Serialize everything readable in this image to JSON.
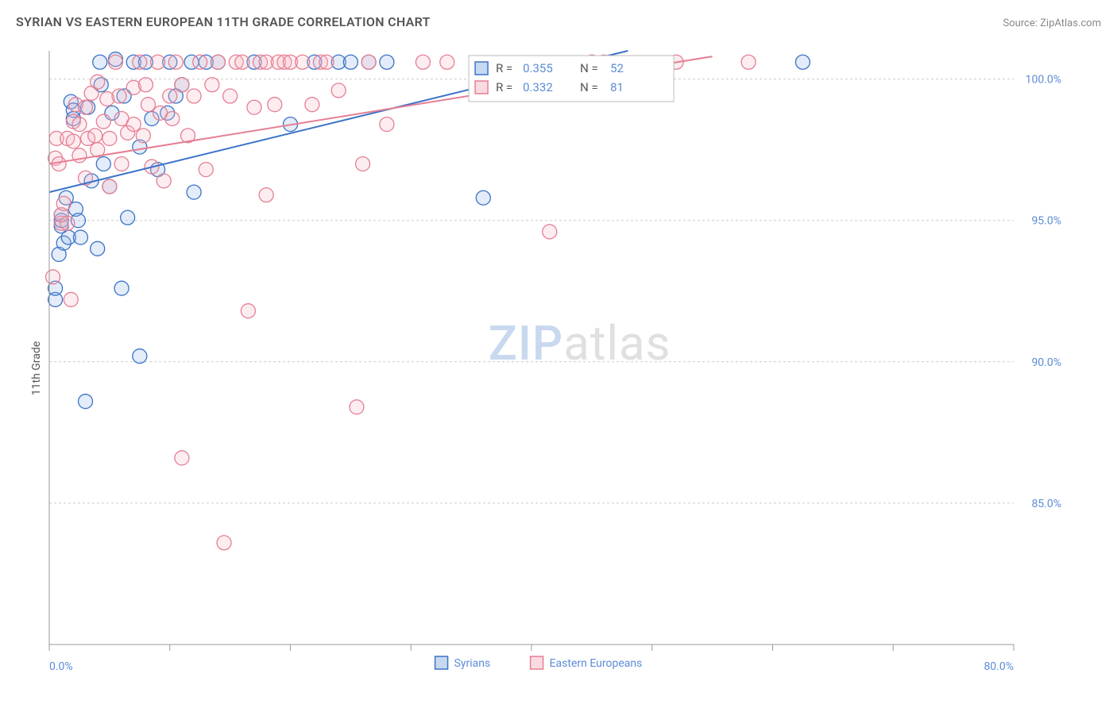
{
  "header": {
    "title": "SYRIAN VS EASTERN EUROPEAN 11TH GRADE CORRELATION CHART",
    "source": "Source: ZipAtlas.com"
  },
  "ylabel": "11th Grade",
  "watermark": {
    "part1": "ZIP",
    "part2": "atlas"
  },
  "chart": {
    "type": "scatter",
    "plot_bg": "#ffffff",
    "grid_color": "#cccccc",
    "axis_color": "#999999",
    "xlim": [
      0,
      80
    ],
    "ylim": [
      80,
      101
    ],
    "xticks": [
      0,
      10,
      20,
      30,
      40,
      50,
      60,
      70,
      80
    ],
    "xtick_labels": {
      "0": "0.0%",
      "80": "80.0%"
    },
    "yticks": [
      85,
      90,
      95,
      100
    ],
    "ytick_labels": {
      "85": "85.0%",
      "90": "90.0%",
      "95": "95.0%",
      "100": "100.0%"
    },
    "marker_radius": 9,
    "marker_stroke_width": 1.3,
    "marker_fill_opacity": 0.25,
    "series": [
      {
        "name": "Syrians",
        "stroke": "#3b73c8",
        "fill": "#8fb3e2",
        "trend": {
          "x1": 0,
          "y1": 96.0,
          "x2": 48,
          "y2": 101.0,
          "width": 2
        },
        "points": [
          [
            0.5,
            92.2
          ],
          [
            0.5,
            92.6
          ],
          [
            0.8,
            93.8
          ],
          [
            1.0,
            94.8
          ],
          [
            1.0,
            95.0
          ],
          [
            1.0,
            95.2
          ],
          [
            1.2,
            94.2
          ],
          [
            1.4,
            95.8
          ],
          [
            1.6,
            94.4
          ],
          [
            1.8,
            99.2
          ],
          [
            2.0,
            98.9
          ],
          [
            2.0,
            98.6
          ],
          [
            2.2,
            95.4
          ],
          [
            2.4,
            95.0
          ],
          [
            2.6,
            94.4
          ],
          [
            3.0,
            88.6
          ],
          [
            3.2,
            99.0
          ],
          [
            3.5,
            96.4
          ],
          [
            4.0,
            94.0
          ],
          [
            4.2,
            100.6
          ],
          [
            4.3,
            99.8
          ],
          [
            4.5,
            97.0
          ],
          [
            5.0,
            96.2
          ],
          [
            5.2,
            98.8
          ],
          [
            5.5,
            100.7
          ],
          [
            6.0,
            92.6
          ],
          [
            6.2,
            99.4
          ],
          [
            6.5,
            95.1
          ],
          [
            7.0,
            100.6
          ],
          [
            7.5,
            97.6
          ],
          [
            7.5,
            90.2
          ],
          [
            8.0,
            100.6
          ],
          [
            8.5,
            98.6
          ],
          [
            9.0,
            96.8
          ],
          [
            9.8,
            98.8
          ],
          [
            10.0,
            100.6
          ],
          [
            10.5,
            99.4
          ],
          [
            11.0,
            99.8
          ],
          [
            11.8,
            100.6
          ],
          [
            12.0,
            96.0
          ],
          [
            13.0,
            100.6
          ],
          [
            14.0,
            100.6
          ],
          [
            17.0,
            100.6
          ],
          [
            20.0,
            98.4
          ],
          [
            22.0,
            100.6
          ],
          [
            24.0,
            100.6
          ],
          [
            25.0,
            100.6
          ],
          [
            26.5,
            100.6
          ],
          [
            28.0,
            100.6
          ],
          [
            36.0,
            95.8
          ],
          [
            45.0,
            100.6
          ],
          [
            62.5,
            100.6
          ]
        ]
      },
      {
        "name": "Eastern Europeans",
        "stroke": "#e57f93",
        "fill": "#f6b8c3",
        "trend": {
          "x1": 0,
          "y1": 97.0,
          "x2": 55,
          "y2": 100.8,
          "width": 2
        },
        "points": [
          [
            0.3,
            93.0
          ],
          [
            0.5,
            97.2
          ],
          [
            0.6,
            97.9
          ],
          [
            0.8,
            97.0
          ],
          [
            1.0,
            94.9
          ],
          [
            1.0,
            95.2
          ],
          [
            1.2,
            95.6
          ],
          [
            1.5,
            97.9
          ],
          [
            1.5,
            94.9
          ],
          [
            1.8,
            92.2
          ],
          [
            2.0,
            98.5
          ],
          [
            2.0,
            97.8
          ],
          [
            2.2,
            99.1
          ],
          [
            2.5,
            97.3
          ],
          [
            2.5,
            98.4
          ],
          [
            3.0,
            96.5
          ],
          [
            3.0,
            99.0
          ],
          [
            3.2,
            97.9
          ],
          [
            3.5,
            99.5
          ],
          [
            3.8,
            98.0
          ],
          [
            4.0,
            97.5
          ],
          [
            4.0,
            99.9
          ],
          [
            4.5,
            98.5
          ],
          [
            4.8,
            99.3
          ],
          [
            5.0,
            97.9
          ],
          [
            5.0,
            96.2
          ],
          [
            5.5,
            100.6
          ],
          [
            5.8,
            99.4
          ],
          [
            6.0,
            98.6
          ],
          [
            6.0,
            97.0
          ],
          [
            6.5,
            98.1
          ],
          [
            7.0,
            99.7
          ],
          [
            7.0,
            98.4
          ],
          [
            7.5,
            100.6
          ],
          [
            7.8,
            98.0
          ],
          [
            8.0,
            99.8
          ],
          [
            8.2,
            99.1
          ],
          [
            8.5,
            96.9
          ],
          [
            9.0,
            100.6
          ],
          [
            9.2,
            98.8
          ],
          [
            9.5,
            96.4
          ],
          [
            10.0,
            99.4
          ],
          [
            10.2,
            98.6
          ],
          [
            10.5,
            100.6
          ],
          [
            11.0,
            99.8
          ],
          [
            11.0,
            86.6
          ],
          [
            11.5,
            98.0
          ],
          [
            12.0,
            99.4
          ],
          [
            12.5,
            100.6
          ],
          [
            13.0,
            96.8
          ],
          [
            13.5,
            99.8
          ],
          [
            14.0,
            100.6
          ],
          [
            14.5,
            83.6
          ],
          [
            15.0,
            99.4
          ],
          [
            15.5,
            100.6
          ],
          [
            16.0,
            100.6
          ],
          [
            16.5,
            91.8
          ],
          [
            17.0,
            99.0
          ],
          [
            17.5,
            100.6
          ],
          [
            18.0,
            100.6
          ],
          [
            18.0,
            95.9
          ],
          [
            18.7,
            99.1
          ],
          [
            19.0,
            100.6
          ],
          [
            19.5,
            100.6
          ],
          [
            20.0,
            100.6
          ],
          [
            21.0,
            100.6
          ],
          [
            21.8,
            99.1
          ],
          [
            22.5,
            100.6
          ],
          [
            23.0,
            100.6
          ],
          [
            24.0,
            99.6
          ],
          [
            25.5,
            88.4
          ],
          [
            26.0,
            97.0
          ],
          [
            26.5,
            100.6
          ],
          [
            28.0,
            98.4
          ],
          [
            31.0,
            100.6
          ],
          [
            33.0,
            100.6
          ],
          [
            41.5,
            94.6
          ],
          [
            45.0,
            100.6
          ],
          [
            46.0,
            100.6
          ],
          [
            52.0,
            100.6
          ],
          [
            58.0,
            100.6
          ]
        ]
      }
    ]
  },
  "stat_box": {
    "bg": "#ffffff",
    "border": "#bbbbbb",
    "rows": [
      {
        "swatch_stroke": "#3b73c8",
        "swatch_fill": "#8fb3e2",
        "r_label": "R =",
        "r_val": "0.355",
        "n_label": "N =",
        "n_val": "52"
      },
      {
        "swatch_stroke": "#e57f93",
        "swatch_fill": "#f6b8c3",
        "r_label": "R =",
        "r_val": "0.332",
        "n_label": "N =",
        "n_val": "81"
      }
    ]
  },
  "legend_bottom": [
    {
      "swatch_stroke": "#3b73c8",
      "swatch_fill": "#8fb3e2",
      "label": "Syrians"
    },
    {
      "swatch_stroke": "#e57f93",
      "swatch_fill": "#f6b8c3",
      "label": "Eastern Europeans"
    }
  ]
}
